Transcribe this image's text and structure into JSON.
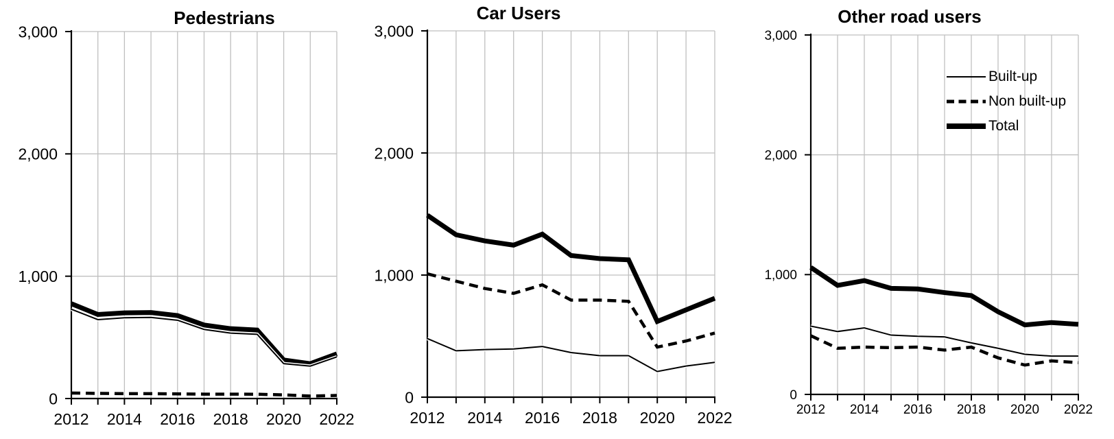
{
  "colors": {
    "line": "#000000",
    "grid": "#bfbfbf",
    "background": "#ffffff",
    "text": "#000000"
  },
  "legend": {
    "items": [
      {
        "label": "Built-up",
        "style": "thin-solid"
      },
      {
        "label": "Non built-up",
        "style": "dashed"
      },
      {
        "label": "Total",
        "style": "thick-solid"
      }
    ],
    "position": "top-right-of-third-chart"
  },
  "chart_data": [
    {
      "type": "line",
      "title": "Pedestrians",
      "x": [
        2012,
        2013,
        2014,
        2015,
        2016,
        2017,
        2018,
        2019,
        2020,
        2021,
        2022
      ],
      "series": [
        {
          "name": "Built-up",
          "style": "thin-solid",
          "values": [
            730,
            645,
            660,
            663,
            640,
            565,
            535,
            525,
            285,
            265,
            340
          ]
        },
        {
          "name": "Non built-up",
          "style": "dashed",
          "values": [
            45,
            42,
            40,
            40,
            38,
            36,
            36,
            35,
            30,
            20,
            25
          ]
        },
        {
          "name": "Total",
          "style": "thick-solid",
          "values": [
            775,
            687,
            700,
            703,
            678,
            601,
            571,
            560,
            315,
            285,
            365
          ]
        }
      ],
      "ylim": [
        0,
        3000
      ],
      "yticks": [
        0,
        1000,
        2000,
        3000
      ],
      "ytick_labels": [
        "0",
        "1,000",
        "2,000",
        "3,000"
      ],
      "xticks_labeled": [
        2012,
        2014,
        2016,
        2018,
        2020,
        2022
      ],
      "grid": true,
      "legend": false
    },
    {
      "type": "line",
      "title": "Car Users",
      "x": [
        2012,
        2013,
        2014,
        2015,
        2016,
        2017,
        2018,
        2019,
        2020,
        2021,
        2022
      ],
      "series": [
        {
          "name": "Built-up",
          "style": "thin-solid",
          "values": [
            480,
            380,
            390,
            395,
            415,
            365,
            340,
            340,
            210,
            255,
            285
          ]
        },
        {
          "name": "Non built-up",
          "style": "dashed",
          "values": [
            1010,
            950,
            890,
            850,
            920,
            795,
            795,
            785,
            410,
            460,
            525
          ]
        },
        {
          "name": "Total",
          "style": "thick-solid",
          "values": [
            1490,
            1330,
            1280,
            1245,
            1335,
            1160,
            1135,
            1125,
            620,
            715,
            810
          ]
        }
      ],
      "ylim": [
        0,
        3000
      ],
      "yticks": [
        0,
        1000,
        2000,
        3000
      ],
      "ytick_labels": [
        "0",
        "1,000",
        "2,000",
        "3,000"
      ],
      "xticks_labeled": [
        2012,
        2014,
        2016,
        2018,
        2020,
        2022
      ],
      "grid": true,
      "legend": false
    },
    {
      "type": "line",
      "title": "Other road users",
      "x": [
        2012,
        2013,
        2014,
        2015,
        2016,
        2017,
        2018,
        2019,
        2020,
        2021,
        2022
      ],
      "series": [
        {
          "name": "Built-up",
          "style": "thin-solid",
          "values": [
            570,
            525,
            555,
            495,
            485,
            480,
            430,
            385,
            335,
            320,
            320
          ]
        },
        {
          "name": "Non built-up",
          "style": "dashed",
          "values": [
            490,
            385,
            395,
            390,
            395,
            370,
            395,
            305,
            245,
            280,
            265
          ]
        },
        {
          "name": "Total",
          "style": "thick-solid",
          "values": [
            1060,
            910,
            950,
            885,
            880,
            850,
            825,
            690,
            580,
            600,
            585
          ]
        }
      ],
      "ylim": [
        0,
        3000
      ],
      "yticks": [
        0,
        1000,
        2000,
        3000
      ],
      "ytick_labels": [
        "0",
        "1,000",
        "2,000",
        "3,000"
      ],
      "xticks_labeled": [
        2012,
        2014,
        2016,
        2018,
        2020,
        2022
      ],
      "grid": true,
      "legend": true
    }
  ]
}
